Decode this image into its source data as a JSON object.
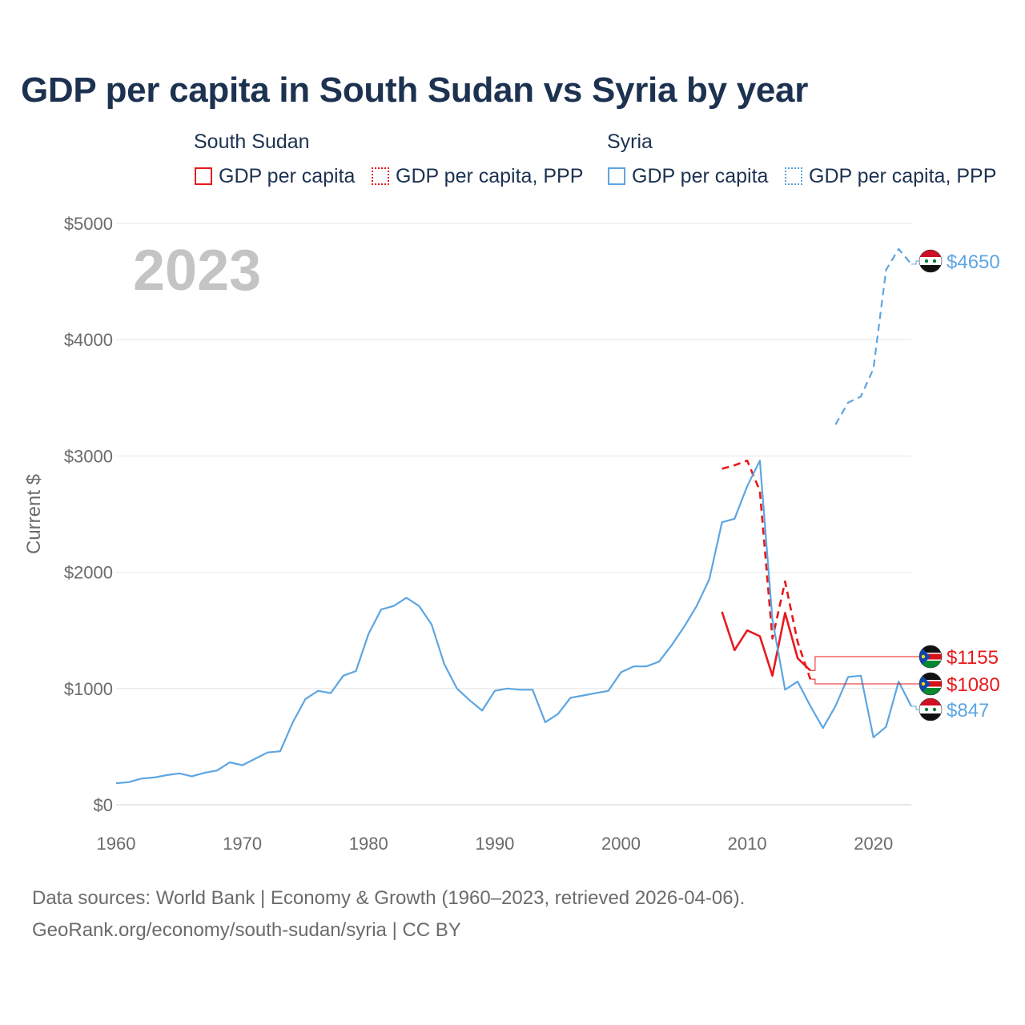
{
  "chart_data": {
    "type": "line",
    "title": "GDP per capita in South Sudan vs Syria by year",
    "ylabel": "Current $",
    "xlabel": "",
    "year_watermark": "2023",
    "xlim": [
      1960,
      2023
    ],
    "ylim": [
      0,
      5000
    ],
    "x_ticks": [
      1960,
      1970,
      1980,
      1990,
      2000,
      2010,
      2020
    ],
    "y_ticks": [
      0,
      1000,
      2000,
      3000,
      4000,
      5000
    ],
    "x_tick_labels": [
      "1960",
      "1970",
      "1980",
      "1990",
      "2000",
      "2010",
      "2020"
    ],
    "y_tick_labels": [
      "$0",
      "$1000",
      "$2000",
      "$3000",
      "$4000",
      "$5000"
    ],
    "legend": {
      "groups": [
        {
          "name": "South Sudan",
          "items": [
            "GDP per capita",
            "GDP per capita, PPP"
          ]
        },
        {
          "name": "Syria",
          "items": [
            "GDP per capita",
            "GDP per capita, PPP"
          ]
        }
      ]
    },
    "colors": {
      "south_sudan": "#e8191c",
      "syria": "#5da5e2"
    },
    "series": [
      {
        "name": "South Sudan GDP per capita",
        "country": "South Sudan",
        "style": "solid",
        "color": "#e8191c",
        "x": [
          2008,
          2009,
          2010,
          2011,
          2012,
          2013,
          2014,
          2015
        ],
        "values": [
          1660,
          1330,
          1500,
          1450,
          1110,
          1650,
          1260,
          1155
        ],
        "end_label": "$1155"
      },
      {
        "name": "South Sudan GDP per capita, PPP",
        "country": "South Sudan",
        "style": "dashed",
        "color": "#e8191c",
        "x": [
          2008,
          2009,
          2010,
          2011,
          2012,
          2013,
          2014,
          2015
        ],
        "values": [
          2890,
          2920,
          2960,
          2700,
          1430,
          1920,
          1400,
          1080
        ],
        "end_label": "$1080"
      },
      {
        "name": "Syria GDP per capita",
        "country": "Syria",
        "style": "solid",
        "color": "#5da5e2",
        "x": [
          1960,
          1961,
          1962,
          1963,
          1964,
          1965,
          1966,
          1967,
          1968,
          1969,
          1970,
          1971,
          1972,
          1973,
          1974,
          1975,
          1976,
          1977,
          1978,
          1979,
          1980,
          1981,
          1982,
          1983,
          1984,
          1985,
          1986,
          1987,
          1988,
          1989,
          1990,
          1991,
          1992,
          1993,
          1994,
          1995,
          1996,
          1997,
          1998,
          1999,
          2000,
          2001,
          2002,
          2003,
          2004,
          2005,
          2006,
          2007,
          2008,
          2009,
          2010,
          2011,
          2012,
          2013,
          2014,
          2015,
          2016,
          2017,
          2018,
          2019,
          2020,
          2021,
          2022,
          2023
        ],
        "values": [
          185,
          195,
          225,
          235,
          255,
          270,
          245,
          275,
          295,
          365,
          340,
          395,
          450,
          460,
          710,
          910,
          980,
          960,
          1110,
          1150,
          1470,
          1680,
          1710,
          1780,
          1710,
          1550,
          1210,
          1000,
          900,
          810,
          980,
          1000,
          990,
          990,
          710,
          780,
          920,
          940,
          960,
          980,
          1140,
          1190,
          1190,
          1230,
          1370,
          1530,
          1710,
          1940,
          2430,
          2460,
          2740,
          2960,
          1590,
          990,
          1060,
          850,
          660,
          850,
          1100,
          1110,
          580,
          670,
          1060,
          847
        ],
        "end_label": "$847"
      },
      {
        "name": "Syria GDP per capita, PPP",
        "country": "Syria",
        "style": "dashed",
        "color": "#5da5e2",
        "x": [
          2017,
          2018,
          2019,
          2020,
          2021,
          2022,
          2023
        ],
        "values": [
          3270,
          3460,
          3510,
          3750,
          4600,
          4780,
          4650
        ],
        "end_label": "$4650"
      }
    ]
  },
  "footer": {
    "line1": "Data sources: World Bank | Economy & Growth (1960–2023, retrieved 2026-04-06).",
    "line2": "GeoRank.org/economy/south-sudan/syria | CC BY"
  }
}
